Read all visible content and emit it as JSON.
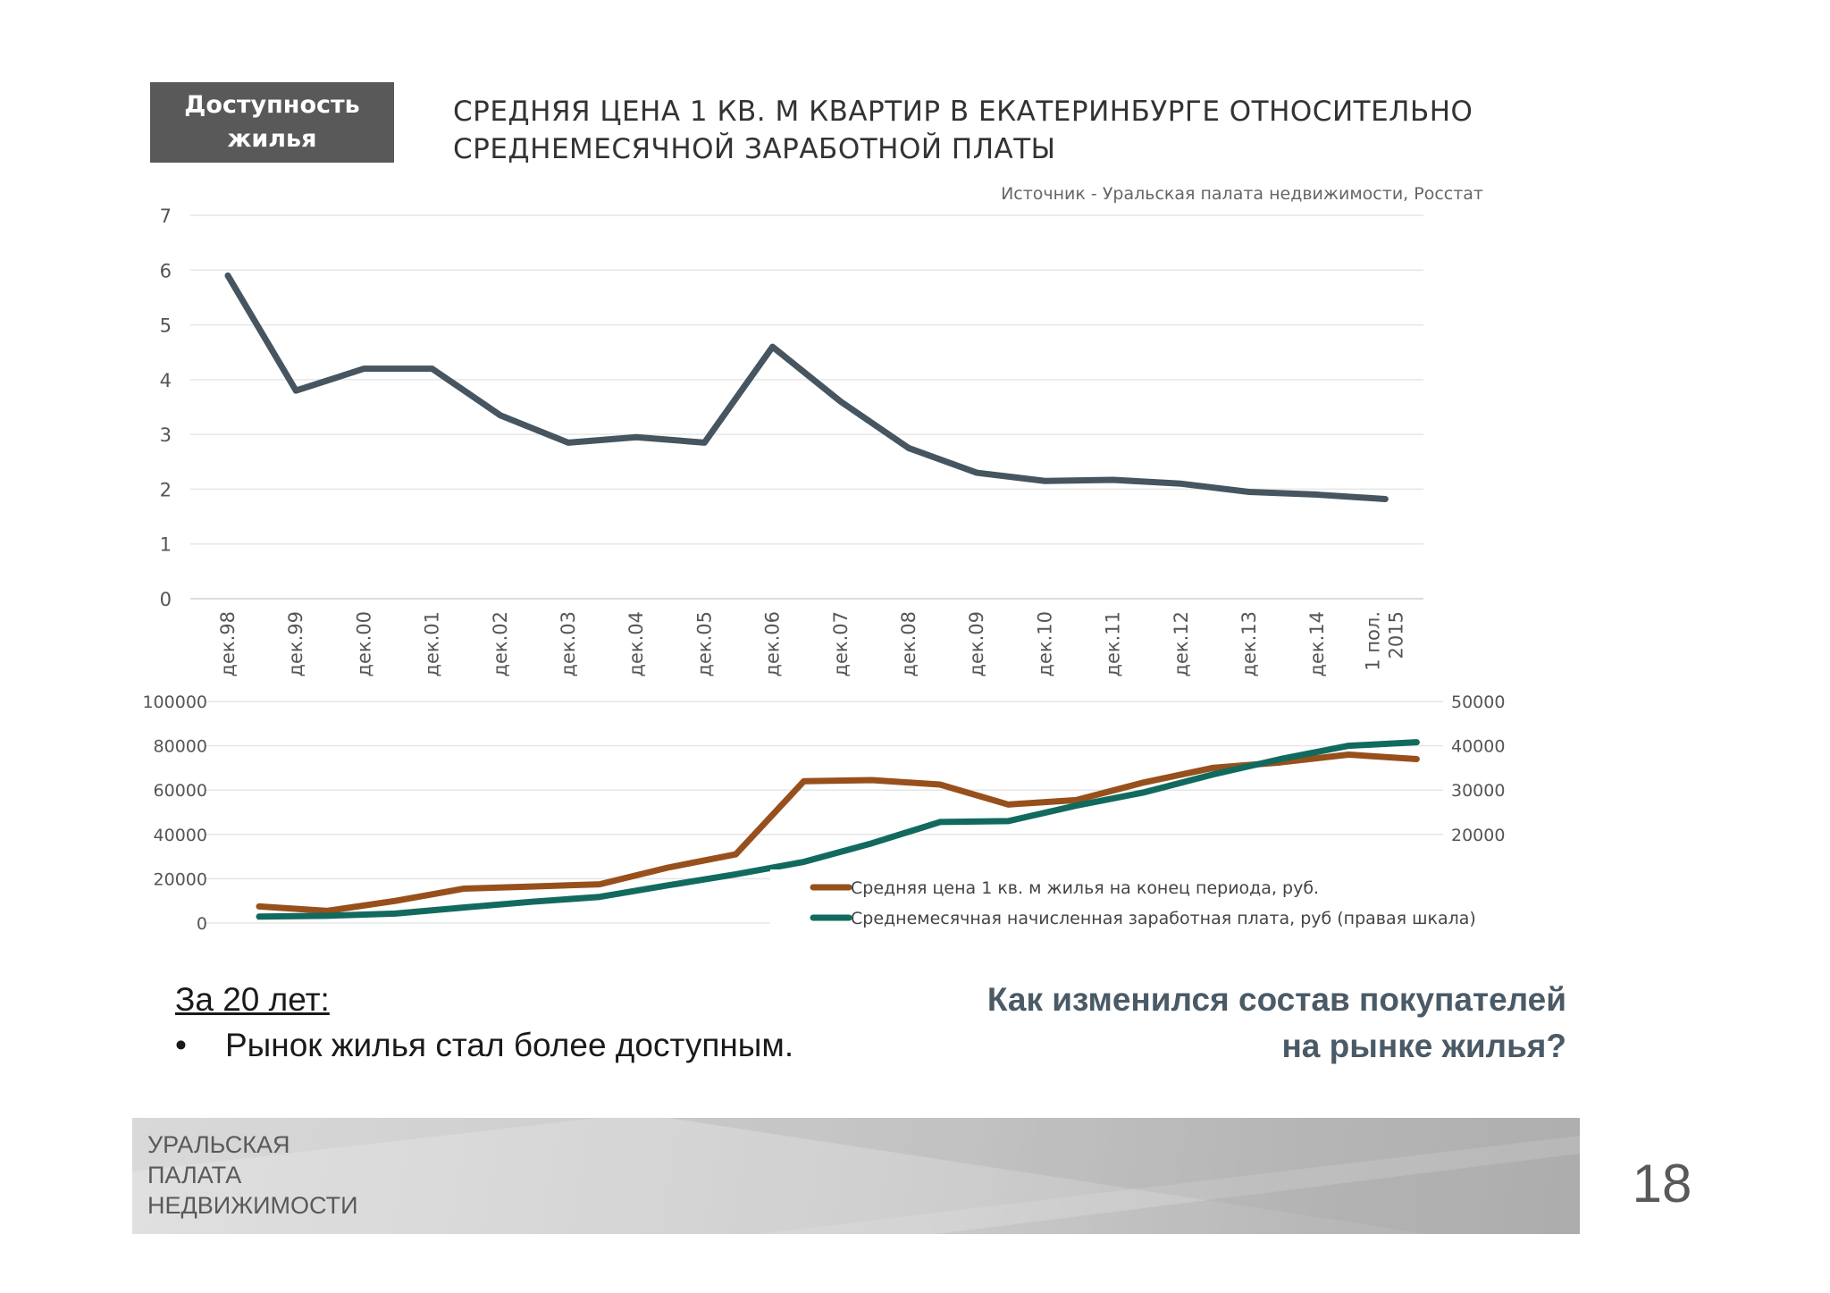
{
  "slide": {
    "section_badge": [
      "Доступность",
      "жилья"
    ],
    "title_lines": [
      "СРЕДНЯЯ ЦЕНА 1 КВ. М КВАРТИР В ЕКАТЕРИНБУРГЕ  ОТНОСИТЕЛЬНО",
      "СРЕДНЕМЕСЯЧНОЙ ЗАРАБОТНОЙ ПЛАТЫ"
    ],
    "source": "Источник  - Уральская палата недвижимости, Росстат",
    "summary_heading": "За 20 лет:",
    "summary_bullet_mark": "•",
    "summary_bullet": "Рынок жилья стал более доступным.",
    "question_lines": [
      "Как изменился состав покупателей",
      "на рынке жилья?"
    ],
    "footer_logo": [
      "УРАЛЬСКАЯ",
      "ПАЛАТА",
      "НЕДВИЖИМОСТИ"
    ],
    "page_number": "18"
  },
  "chart_data": [
    {
      "type": "line",
      "categories": [
        "дек.98",
        "дек.99",
        "дек.00",
        "дек.01",
        "дек.02",
        "дек.03",
        "дек.04",
        "дек.05",
        "дек.06",
        "дек.07",
        "дек.08",
        "дек.09",
        "дек.10",
        "дек.11",
        "дек.12",
        "дек.13",
        "дек.14",
        "1 пол. 2015"
      ],
      "series": [
        {
          "values": [
            5.9,
            3.8,
            4.2,
            4.2,
            3.35,
            2.85,
            2.95,
            2.85,
            4.6,
            3.6,
            2.75,
            2.3,
            2.15,
            2.17,
            2.1,
            1.95,
            1.9,
            1.82
          ],
          "color": "#46555f"
        }
      ],
      "ylim": [
        0,
        7
      ],
      "yticks": [
        0,
        1,
        2,
        3,
        4,
        5,
        6,
        7
      ],
      "grid": true
    },
    {
      "type": "line",
      "categories": [
        "дек.98",
        "дек.99",
        "дек.00",
        "дек.01",
        "дек.02",
        "дек.03",
        "дек.04",
        "дек.05",
        "дек.06",
        "дек.07",
        "дек.08",
        "дек.09",
        "дек.10",
        "дек.11",
        "дек.12",
        "дек.13",
        "дек.14",
        "1 пол. 2015"
      ],
      "series": [
        {
          "name": "Средняя цена 1 кв. м жилья на конец периода, руб.",
          "axis": "left",
          "color": "#97501c",
          "values": [
            7500,
            5500,
            10000,
            15500,
            16500,
            17500,
            25000,
            31000,
            64000,
            64500,
            62500,
            53500,
            55500,
            63500,
            70000,
            72500,
            76000,
            74000
          ]
        },
        {
          "name": "Среднемесячная начисленная заработная плата, руб (правая шкала)",
          "axis": "right",
          "color": "#126a5f",
          "values": [
            1450,
            1650,
            2150,
            3500,
            4800,
            5900,
            8500,
            11000,
            13800,
            18000,
            22800,
            23000,
            26500,
            29500,
            33500,
            37000,
            40000,
            40800
          ]
        }
      ],
      "ylim_left": [
        0,
        100000
      ],
      "yticks_left": [
        0,
        20000,
        40000,
        60000,
        80000,
        100000
      ],
      "ylim_right": [
        0,
        50000
      ],
      "yticks_right": [
        20000,
        30000,
        40000,
        50000
      ],
      "grid": true,
      "legend_position": "bottom-right"
    }
  ]
}
